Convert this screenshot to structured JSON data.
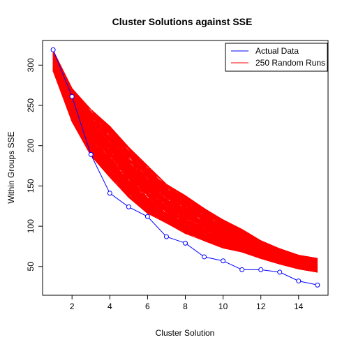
{
  "chart_data": {
    "type": "line",
    "title": "Cluster Solutions against SSE",
    "xlabel": "Cluster Solution",
    "ylabel": "Within Groups SSE",
    "xlim": [
      0.44,
      15.56
    ],
    "ylim": [
      14.3,
      330.6
    ],
    "x_ticks": [
      2,
      4,
      6,
      8,
      10,
      12,
      14
    ],
    "y_ticks": [
      50,
      100,
      150,
      200,
      250,
      300
    ],
    "grid": false,
    "legend_position": "top-right",
    "series": [
      {
        "name": "Actual Data",
        "color": "#0000ff",
        "marker": "open-circle",
        "x": [
          1,
          2,
          3,
          4,
          5,
          6,
          7,
          8,
          9,
          10,
          11,
          12,
          13,
          14,
          15
        ],
        "values": [
          319,
          261,
          189,
          141,
          124,
          112,
          87,
          79,
          62,
          57,
          46,
          46,
          43,
          32,
          27
        ]
      },
      {
        "name": "250 Random Runs",
        "color": "#ff0000",
        "run_count": 250,
        "x": [
          1,
          2,
          3,
          4,
          5,
          6,
          7,
          8,
          9,
          10,
          11,
          12,
          13,
          14,
          15
        ],
        "low": [
          293,
          230,
          188,
          161,
          136,
          116,
          104,
          91,
          82,
          73,
          68,
          60,
          53,
          47,
          43
        ],
        "high": [
          318,
          271,
          245,
          224,
          198,
          175,
          152,
          138,
          122,
          108,
          96,
          82,
          72,
          64,
          60
        ]
      }
    ]
  }
}
